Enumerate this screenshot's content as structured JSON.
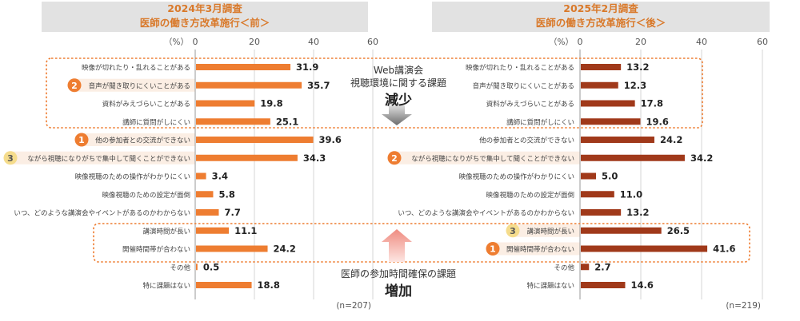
{
  "left_header": {
    "line1": "2024年3月調査",
    "line2": "医師の働き方改革施行＜前＞"
  },
  "right_header": {
    "line1": "2025年2月調査",
    "line2": "医師の働き方改革施行＜後＞"
  },
  "annotations": {
    "top_line1": "Web講演会",
    "top_line2": "視聴環境に関する課題",
    "top_big": "減少",
    "bottom_line1": "医師の参加時間確保の課題",
    "bottom_big": "増加"
  },
  "colors": {
    "before_bar": "#ee7d31",
    "after_bar": "#a0391a",
    "rank_badge": "#ee7d31",
    "rank3_badge": "#f5dc8c",
    "highlight_row": "#fbeee4",
    "dotted_box": "#ee7d31"
  },
  "chart_data": [
    {
      "type": "bar",
      "orientation": "horizontal",
      "panel": "before",
      "unit_label": "（%）",
      "xlim": [
        0,
        60
      ],
      "ticks": [
        0,
        20,
        40,
        60
      ],
      "n_label": "(n=207)",
      "categories": [
        "映像が切れたり・乱れることがある",
        "音声が聞き取りにくいことがある",
        "資料がみえづらいことがある",
        "講師に質問がしにくい",
        "他の参加者との交流ができない",
        "ながら視聴になりがちで集中して聞くことができない",
        "映像視聴のための操作がわかりにくい",
        "映像視聴のための設定が面倒",
        "いつ、どのような講演会やイベントがあるのかわからない",
        "講演時間が長い",
        "開催時間帯が合わない",
        "その他",
        "特に課題はない"
      ],
      "values": [
        31.9,
        35.7,
        19.8,
        25.1,
        39.6,
        34.3,
        3.4,
        5.8,
        7.7,
        11.1,
        24.2,
        0.5,
        18.8
      ],
      "ranks": [
        null,
        "2",
        null,
        null,
        "1",
        "3",
        null,
        null,
        null,
        null,
        null,
        null,
        null
      ]
    },
    {
      "type": "bar",
      "orientation": "horizontal",
      "panel": "after",
      "unit_label": "（%）",
      "xlim": [
        0,
        60
      ],
      "ticks": [
        0,
        20,
        40,
        60
      ],
      "n_label": "(n=219)",
      "categories": [
        "映像が切れたり・乱れることがある",
        "音声が聞き取りにくいことがある",
        "資料がみえづらいことがある",
        "講師に質問がしにくい",
        "他の参加者との交流ができない",
        "ながら視聴になりがちで集中して聞くことができない",
        "映像視聴のための操作がわかりにくい",
        "映像視聴のための設定が面倒",
        "いつ、どのような講演会やイベントがあるのかわからない",
        "講演時間が長い",
        "開催時間帯が合わない",
        "その他",
        "特に課題はない"
      ],
      "values": [
        13.2,
        12.3,
        17.8,
        19.6,
        24.2,
        34.2,
        5.0,
        11.0,
        13.2,
        26.5,
        41.6,
        2.7,
        14.6
      ],
      "ranks": [
        null,
        null,
        null,
        null,
        null,
        "2",
        null,
        null,
        null,
        "3",
        "1",
        null,
        null
      ]
    }
  ]
}
